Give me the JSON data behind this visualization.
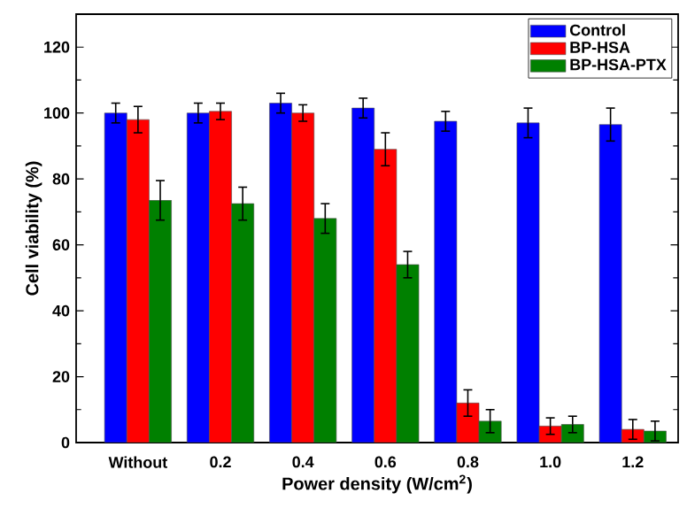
{
  "chart_data": {
    "type": "bar",
    "xlabel": "Power density (W/cm$^{2}$)",
    "ylabel": "Cell viability (%)",
    "categories": [
      "Without",
      "0.2",
      "0.4",
      "0.6",
      "0.8",
      "1.0",
      "1.2"
    ],
    "series": [
      {
        "name": "Control",
        "color": "#0000ff",
        "values": [
          100,
          100,
          103,
          101.5,
          97.5,
          97,
          96.5
        ],
        "errors": [
          3,
          3,
          3,
          3,
          3,
          4.5,
          5
        ]
      },
      {
        "name": "BP-HSA",
        "color": "#ff0000",
        "values": [
          98,
          100.5,
          100,
          89,
          12,
          5,
          4
        ],
        "errors": [
          4,
          2.5,
          2.5,
          5,
          4,
          2.5,
          3
        ]
      },
      {
        "name": "BP-HSA-PTX",
        "color": "#008000",
        "values": [
          73.5,
          72.5,
          68,
          54,
          6.5,
          5.5,
          3.5
        ],
        "errors": [
          6,
          5,
          4.5,
          4,
          3.5,
          2.5,
          3
        ]
      }
    ],
    "ylim": [
      0,
      130
    ],
    "yticks": [
      0,
      20,
      40,
      60,
      80,
      100,
      120
    ],
    "legend": "top right",
    "grid": false
  }
}
